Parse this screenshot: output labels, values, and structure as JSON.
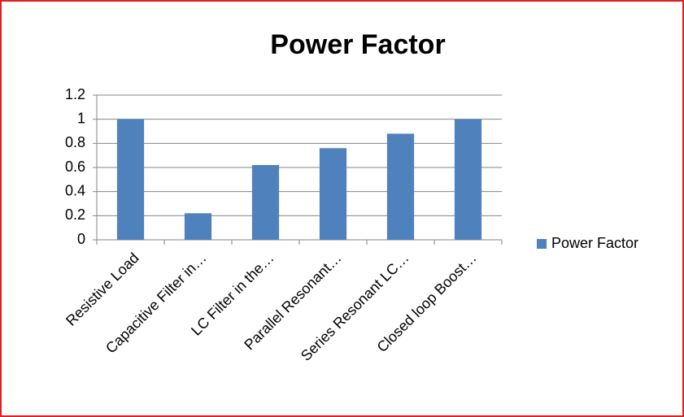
{
  "chart_data": {
    "type": "bar",
    "title": "Power Factor",
    "categories": [
      "Resistive Load",
      "Capacitive Filter in…",
      "LC Filter in the…",
      "Parallel Resonant…",
      "Series Resonant LC…",
      "Closed loop Boost…"
    ],
    "series": [
      {
        "name": "Power Factor",
        "color": "#4f81bd",
        "values": [
          1,
          0.22,
          0.62,
          0.76,
          0.88,
          1
        ]
      }
    ],
    "ylim": [
      0,
      1.2
    ],
    "yticks": [
      0,
      0.2,
      0.4,
      0.6,
      0.8,
      1,
      1.2
    ],
    "grid": true,
    "legend": "right"
  }
}
